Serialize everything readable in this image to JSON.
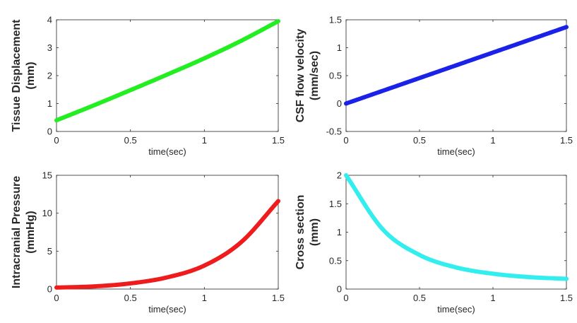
{
  "chart_data": [
    {
      "type": "line",
      "curve": "exp_growth",
      "color": "#22ee22",
      "x": [
        0,
        0.25,
        0.5,
        0.75,
        1.0,
        1.25,
        1.5
      ],
      "y": [
        0.4,
        0.93,
        1.48,
        2.04,
        2.62,
        3.25,
        3.95
      ],
      "xlim": [
        0,
        1.5
      ],
      "ylim": [
        0,
        4
      ],
      "xticks": [
        0,
        0.5,
        1,
        1.5
      ],
      "xtick_labels": [
        "0",
        "0.5",
        "1",
        "1.5"
      ],
      "yticks": [
        0,
        1,
        2,
        3,
        4
      ],
      "ytick_labels": [
        "0",
        "1",
        "2",
        "3",
        "4"
      ],
      "xlabel": "time(sec)",
      "ylabel_lines": [
        "Tissue Displacement",
        "(mm)"
      ]
    },
    {
      "type": "line",
      "curve": "linear",
      "color": "#1a22e8",
      "x": [
        0,
        0.5,
        1.0,
        1.5
      ],
      "y": [
        0,
        0.46,
        0.92,
        1.37
      ],
      "xlim": [
        0,
        1.5
      ],
      "ylim": [
        -0.5,
        1.5
      ],
      "xticks": [
        0,
        0.5,
        1,
        1.5
      ],
      "xtick_labels": [
        "0",
        "0.5",
        "1",
        "1.5"
      ],
      "yticks": [
        -0.5,
        0,
        0.5,
        1,
        1.5
      ],
      "ytick_labels": [
        "-0.5",
        "0",
        "0.5",
        "1",
        "1.5"
      ],
      "xlabel": "time(sec)",
      "ylabel_lines": [
        "CSF flow velocity",
        "(mm/sec)"
      ]
    },
    {
      "type": "line",
      "curve": "exp_growth",
      "color": "#ee1c1c",
      "x": [
        0,
        0.25,
        0.5,
        0.75,
        1.0,
        1.25,
        1.5
      ],
      "y": [
        0.2,
        0.35,
        0.75,
        1.55,
        3.1,
        6.2,
        11.6
      ],
      "xlim": [
        0,
        1.5
      ],
      "ylim": [
        0,
        15
      ],
      "xticks": [
        0,
        0.5,
        1,
        1.5
      ],
      "xtick_labels": [
        "0",
        "0.5",
        "1",
        "1.5"
      ],
      "yticks": [
        0,
        5,
        10,
        15
      ],
      "ytick_labels": [
        "0",
        "5",
        "10",
        "15"
      ],
      "xlabel": "time(sec)",
      "ylabel_lines": [
        "Intracranial Pressure",
        "(mmHg)"
      ]
    },
    {
      "type": "line",
      "curve": "exp_decay",
      "color": "#33eeee",
      "x": [
        0,
        0.25,
        0.5,
        0.75,
        1.0,
        1.25,
        1.5
      ],
      "y": [
        2.0,
        1.05,
        0.6,
        0.38,
        0.27,
        0.21,
        0.18
      ],
      "xlim": [
        0,
        1.5
      ],
      "ylim": [
        0,
        2
      ],
      "xticks": [
        0,
        0.5,
        1,
        1.5
      ],
      "xtick_labels": [
        "0",
        "0.5",
        "1",
        "1.5"
      ],
      "yticks": [
        0,
        0.5,
        1,
        1.5,
        2
      ],
      "ytick_labels": [
        "0",
        "0.5",
        "1",
        "1.5",
        "2"
      ],
      "xlabel": "time(sec)",
      "ylabel_lines": [
        "Cross section",
        "(mm)"
      ]
    }
  ]
}
